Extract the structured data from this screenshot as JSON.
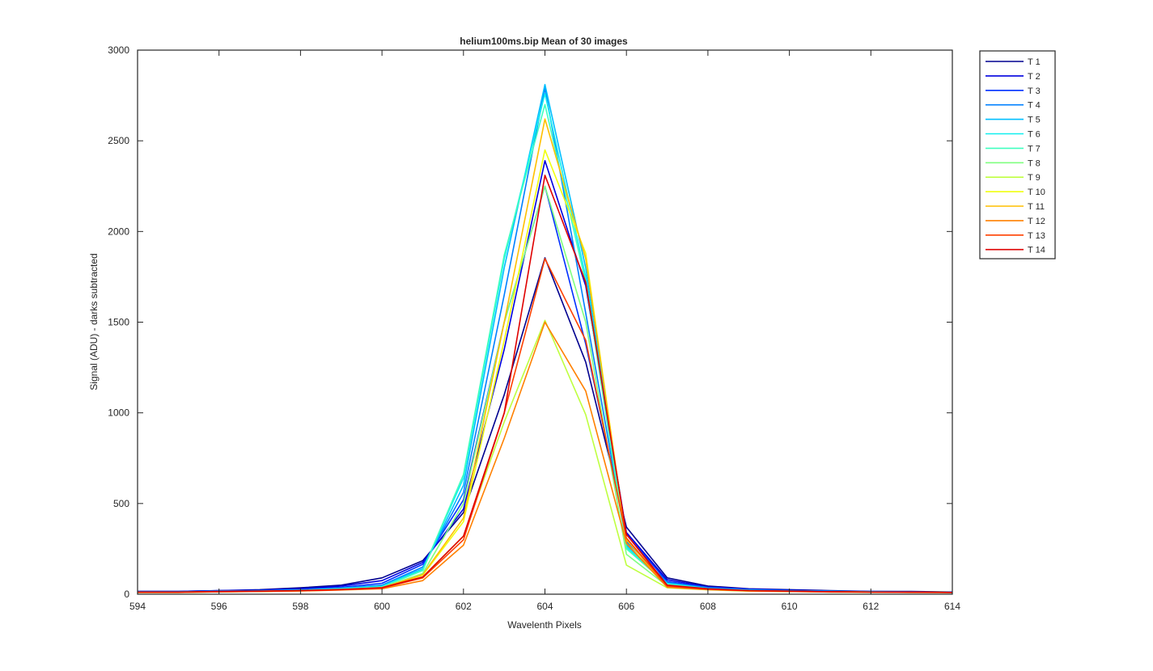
{
  "chart_data": {
    "type": "line",
    "title": "helium100ms.bip  Mean of 30 images",
    "xlabel": "Wavelenth Pixels",
    "ylabel": "Signal (ADU) - darks subtracted",
    "xlim": [
      594,
      614
    ],
    "ylim": [
      0,
      3000
    ],
    "xticks": [
      594,
      596,
      598,
      600,
      602,
      604,
      606,
      608,
      610,
      612,
      614
    ],
    "yticks": [
      0,
      500,
      1000,
      1500,
      2000,
      2500,
      3000
    ],
    "grid": false,
    "legend_position": "outside-top-right",
    "x": [
      594,
      595,
      596,
      597,
      598,
      599,
      600,
      601,
      602,
      603,
      604,
      605,
      606,
      607,
      608,
      609,
      610,
      611,
      612,
      613,
      614
    ],
    "series": [
      {
        "name": "T 1",
        "color": "#00008f",
        "values": [
          15,
          15,
          20,
          25,
          35,
          50,
          90,
          185,
          450,
          1100,
          1855,
          1280,
          370,
          90,
          45,
          30,
          25,
          20,
          15,
          15,
          12
        ]
      },
      {
        "name": "T 2",
        "color": "#0000df",
        "values": [
          15,
          15,
          20,
          22,
          30,
          45,
          75,
          175,
          470,
          1350,
          2390,
          1700,
          340,
          80,
          40,
          28,
          22,
          18,
          15,
          14,
          12
        ]
      },
      {
        "name": "T 3",
        "color": "#0030ff",
        "values": [
          14,
          14,
          18,
          20,
          26,
          38,
          60,
          165,
          520,
          1500,
          2250,
          1380,
          330,
          70,
          38,
          26,
          20,
          17,
          14,
          13,
          11
        ]
      },
      {
        "name": "T 4",
        "color": "#0080ff",
        "values": [
          13,
          13,
          17,
          19,
          24,
          34,
          50,
          150,
          560,
          1650,
          2790,
          1550,
          290,
          65,
          35,
          24,
          19,
          16,
          14,
          12,
          10
        ]
      },
      {
        "name": "T 5",
        "color": "#00bfff",
        "values": [
          13,
          13,
          16,
          18,
          22,
          32,
          45,
          140,
          600,
          1800,
          2810,
          1800,
          270,
          60,
          32,
          22,
          18,
          15,
          13,
          12,
          10
        ]
      },
      {
        "name": "T 6",
        "color": "#10efef",
        "values": [
          12,
          12,
          15,
          17,
          21,
          30,
          42,
          135,
          640,
          1850,
          2760,
          1750,
          260,
          58,
          30,
          21,
          17,
          15,
          13,
          11,
          10
        ]
      },
      {
        "name": "T 7",
        "color": "#40ffbf",
        "values": [
          12,
          12,
          15,
          17,
          20,
          28,
          40,
          130,
          660,
          1870,
          2700,
          1720,
          250,
          55,
          30,
          20,
          17,
          14,
          12,
          11,
          10
        ]
      },
      {
        "name": "T 8",
        "color": "#80ff80",
        "values": [
          11,
          11,
          14,
          16,
          19,
          26,
          36,
          115,
          500,
          1500,
          2250,
          1500,
          220,
          45,
          27,
          19,
          16,
          13,
          12,
          11,
          10
        ]
      },
      {
        "name": "T 9",
        "color": "#bfff40",
        "values": [
          10,
          10,
          13,
          15,
          18,
          24,
          32,
          95,
          320,
          950,
          1510,
          990,
          160,
          35,
          24,
          17,
          15,
          12,
          11,
          10,
          9
        ]
      },
      {
        "name": "T 10",
        "color": "#f0ff0f",
        "values": [
          11,
          11,
          14,
          16,
          19,
          25,
          35,
          105,
          400,
          1400,
          2450,
          1880,
          280,
          40,
          26,
          18,
          16,
          13,
          12,
          11,
          10
        ]
      },
      {
        "name": "T 11",
        "color": "#ffbf00",
        "values": [
          11,
          11,
          14,
          16,
          19,
          25,
          36,
          108,
          420,
          1500,
          2620,
          1850,
          300,
          42,
          27,
          19,
          16,
          13,
          12,
          11,
          10
        ]
      },
      {
        "name": "T 12",
        "color": "#ff8000",
        "values": [
          10,
          10,
          13,
          15,
          18,
          23,
          30,
          75,
          270,
          860,
          1500,
          1120,
          280,
          38,
          25,
          18,
          15,
          12,
          11,
          10,
          9
        ]
      },
      {
        "name": "T 13",
        "color": "#ff4000",
        "values": [
          11,
          11,
          14,
          16,
          19,
          25,
          34,
          90,
          300,
          1000,
          1850,
          1400,
          310,
          45,
          28,
          19,
          16,
          13,
          12,
          11,
          10
        ]
      },
      {
        "name": "T 14",
        "color": "#df0000",
        "values": [
          12,
          12,
          15,
          17,
          20,
          26,
          36,
          95,
          320,
          1000,
          2310,
          1720,
          330,
          50,
          30,
          20,
          17,
          14,
          12,
          11,
          10
        ]
      }
    ]
  }
}
